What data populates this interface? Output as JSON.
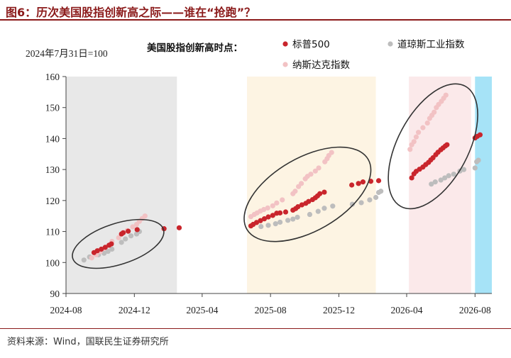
{
  "figure_title": "图6：历次美国股指创新高之际——谁在“抢跑”？",
  "source_note": "资料来源：Wind，国联民生证券研究所",
  "chart_data": {
    "type": "scatter",
    "title": "",
    "base_note": "2024年7月31日=100",
    "legend_title": "美国股指创新高时点：",
    "legend_position": "top-right",
    "xlabel": "",
    "ylabel": "",
    "ylim": [
      90,
      160
    ],
    "yticks": [
      90,
      100,
      110,
      120,
      130,
      140,
      150,
      160
    ],
    "xlim": [
      "2024-08-01",
      "2026-08-31"
    ],
    "xticks": [
      "2024-08",
      "2024-12",
      "2025-04",
      "2025-08",
      "2025-12",
      "2026-04",
      "2026-08"
    ],
    "grid": false,
    "colors": {
      "sp500": "#c9252c",
      "nasdaq": "#f2c2c4",
      "dow": "#bdbdbd",
      "period_gray": "#e8e8e8",
      "period_cream": "#fdf4e3",
      "period_pink": "#fbe9ea",
      "period_blue": "#a6e3f7",
      "ellipse": "#333333"
    },
    "highlight_periods": [
      {
        "start": "2024-08-01",
        "end": "2025-02-15",
        "color": "gray"
      },
      {
        "start": "2025-06-20",
        "end": "2026-02-05",
        "color": "cream"
      },
      {
        "start": "2026-04-05",
        "end": "2026-07-25",
        "color": "pink"
      },
      {
        "start": "2026-08-01",
        "end": "2026-08-31",
        "color": "blue"
      }
    ],
    "series": [
      {
        "name": "标普500",
        "color_key": "sp500",
        "points": [
          [
            "2024-09-20",
            103.2
          ],
          [
            "2024-09-26",
            103.8
          ],
          [
            "2024-10-03",
            104.3
          ],
          [
            "2024-10-10",
            104.9
          ],
          [
            "2024-10-17",
            105.6
          ],
          [
            "2024-10-21",
            106.0
          ],
          [
            "2024-11-08",
            109.2
          ],
          [
            "2024-11-11",
            109.6
          ],
          [
            "2024-11-20",
            110.1
          ],
          [
            "2024-12-06",
            110.6
          ],
          [
            "2025-01-23",
            110.9
          ],
          [
            "2025-02-19",
            111.2
          ],
          [
            "2025-06-27",
            111.8
          ],
          [
            "2025-07-01",
            112.3
          ],
          [
            "2025-07-07",
            112.9
          ],
          [
            "2025-07-14",
            113.5
          ],
          [
            "2025-07-21",
            114.1
          ],
          [
            "2025-07-28",
            114.7
          ],
          [
            "2025-08-05",
            115.2
          ],
          [
            "2025-08-12",
            115.9
          ],
          [
            "2025-08-18",
            116.0
          ],
          [
            "2025-08-28",
            116.3
          ],
          [
            "2025-09-10",
            116.9
          ],
          [
            "2025-09-15",
            117.4
          ],
          [
            "2025-09-19",
            118.0
          ],
          [
            "2025-09-26",
            118.6
          ],
          [
            "2025-10-03",
            119.1
          ],
          [
            "2025-10-08",
            119.7
          ],
          [
            "2025-10-15",
            120.3
          ],
          [
            "2025-10-20",
            120.9
          ],
          [
            "2025-10-24",
            121.5
          ],
          [
            "2025-10-28",
            122.2
          ],
          [
            "2025-11-05",
            122.7
          ],
          [
            "2025-12-24",
            125.0
          ],
          [
            "2026-01-05",
            125.5
          ],
          [
            "2026-01-13",
            126.0
          ],
          [
            "2026-01-27",
            126.2
          ],
          [
            "2026-02-10",
            126.4
          ],
          [
            "2026-04-10",
            127.3
          ],
          [
            "2026-04-14",
            128.6
          ],
          [
            "2026-04-18",
            129.4
          ],
          [
            "2026-04-24",
            130.1
          ],
          [
            "2026-04-30",
            130.8
          ],
          [
            "2026-05-05",
            131.6
          ],
          [
            "2026-05-10",
            132.3
          ],
          [
            "2026-05-14",
            133.1
          ],
          [
            "2026-05-18",
            133.8
          ],
          [
            "2026-05-23",
            134.8
          ],
          [
            "2026-05-27",
            135.6
          ],
          [
            "2026-06-01",
            136.4
          ],
          [
            "2026-06-05",
            137.0
          ],
          [
            "2026-06-09",
            137.6
          ],
          [
            "2026-06-12",
            138.0
          ],
          [
            "2026-08-01",
            140.2
          ],
          [
            "2026-08-05",
            140.7
          ],
          [
            "2026-08-10",
            141.2
          ]
        ]
      },
      {
        "name": "纳斯达克指数",
        "color_key": "nasdaq",
        "points": [
          [
            "2024-09-16",
            101.5
          ],
          [
            "2024-09-24",
            102.5
          ],
          [
            "2024-10-01",
            103.5
          ],
          [
            "2024-10-08",
            104.5
          ],
          [
            "2024-10-16",
            105.5
          ],
          [
            "2024-10-22",
            106.8
          ],
          [
            "2024-11-03",
            108.0
          ],
          [
            "2024-11-10",
            109.5
          ],
          [
            "2024-11-18",
            110.3
          ],
          [
            "2024-11-28",
            111.5
          ],
          [
            "2024-12-05",
            112.3
          ],
          [
            "2024-12-10",
            113.3
          ],
          [
            "2024-12-15",
            114.2
          ],
          [
            "2024-12-20",
            115.0
          ],
          [
            "2025-06-27",
            114.8
          ],
          [
            "2025-07-03",
            115.5
          ],
          [
            "2025-07-08",
            116.0
          ],
          [
            "2025-07-14",
            116.6
          ],
          [
            "2025-07-20",
            117.1
          ],
          [
            "2025-07-27",
            117.6
          ],
          [
            "2025-08-05",
            118.3
          ],
          [
            "2025-08-12",
            119.2
          ],
          [
            "2025-08-22",
            120.2
          ],
          [
            "2025-09-10",
            122.2
          ],
          [
            "2025-09-14",
            123.0
          ],
          [
            "2025-09-20",
            124.5
          ],
          [
            "2025-09-25",
            125.5
          ],
          [
            "2025-10-02",
            127.0
          ],
          [
            "2025-10-06",
            127.8
          ],
          [
            "2025-10-12",
            128.5
          ],
          [
            "2025-10-20",
            129.5
          ],
          [
            "2025-10-26",
            130.5
          ],
          [
            "2025-11-06",
            132.5
          ],
          [
            "2025-11-10",
            133.5
          ],
          [
            "2025-11-13",
            134.5
          ],
          [
            "2025-11-18",
            135.5
          ],
          [
            "2026-04-07",
            136.5
          ],
          [
            "2026-04-10",
            138.0
          ],
          [
            "2026-04-14",
            139.0
          ],
          [
            "2026-04-18",
            140.5
          ],
          [
            "2026-04-22",
            142.0
          ],
          [
            "2026-04-30",
            143.5
          ],
          [
            "2026-05-08",
            145.0
          ],
          [
            "2026-05-12",
            146.5
          ],
          [
            "2026-05-16",
            147.5
          ],
          [
            "2026-05-20",
            148.5
          ],
          [
            "2026-05-24",
            150.0
          ],
          [
            "2026-05-28",
            151.0
          ],
          [
            "2026-06-02",
            152.0
          ],
          [
            "2026-06-06",
            153.0
          ],
          [
            "2026-06-10",
            154.0
          ]
        ]
      },
      {
        "name": "道琼斯工业指数",
        "color_key": "dow",
        "points": [
          [
            "2024-09-02",
            100.8
          ],
          [
            "2024-09-12",
            101.8
          ],
          [
            "2024-09-28",
            102.5
          ],
          [
            "2024-10-08",
            103.0
          ],
          [
            "2024-10-15",
            103.6
          ],
          [
            "2024-10-22",
            104.3
          ],
          [
            "2024-11-08",
            106.5
          ],
          [
            "2024-11-15",
            107.6
          ],
          [
            "2024-11-25",
            108.6
          ],
          [
            "2024-12-05",
            109.2
          ],
          [
            "2024-12-10",
            110.0
          ],
          [
            "2025-07-15",
            111.6
          ],
          [
            "2025-07-28",
            112.0
          ],
          [
            "2025-08-10",
            112.5
          ],
          [
            "2025-08-18",
            113.0
          ],
          [
            "2025-09-01",
            113.6
          ],
          [
            "2025-09-10",
            114.0
          ],
          [
            "2025-09-18",
            114.6
          ],
          [
            "2025-10-10",
            115.5
          ],
          [
            "2025-10-25",
            116.5
          ],
          [
            "2025-11-05",
            117.5
          ],
          [
            "2025-11-20",
            118.2
          ],
          [
            "2025-12-25",
            118.8
          ],
          [
            "2026-01-10",
            119.3
          ],
          [
            "2026-01-25",
            120.2
          ],
          [
            "2026-02-05",
            121.0
          ],
          [
            "2026-02-10",
            122.6
          ],
          [
            "2026-02-14",
            123.0
          ],
          [
            "2026-05-15",
            125.3
          ],
          [
            "2026-05-22",
            126.0
          ],
          [
            "2026-06-01",
            126.6
          ],
          [
            "2026-06-08",
            127.3
          ],
          [
            "2026-06-15",
            128.0
          ],
          [
            "2026-06-24",
            128.5
          ],
          [
            "2026-07-05",
            129.5
          ],
          [
            "2026-07-12",
            130.0
          ],
          [
            "2026-08-01",
            130.5
          ],
          [
            "2026-08-04",
            132.5
          ],
          [
            "2026-08-07",
            133.0
          ]
        ]
      }
    ],
    "ellipses": [
      {
        "center": [
          "2024-11-02",
          106.0
        ],
        "rx_days": 85,
        "ry_value": 6.6,
        "angle": -18
      },
      {
        "center": [
          "2025-10-06",
          122.0
        ],
        "rx_days": 125,
        "ry_value": 11.8,
        "angle": -30
      },
      {
        "center": [
          "2026-05-18",
          137.5
        ],
        "rx_days": 63,
        "ry_value": 22.0,
        "angle": 28
      }
    ]
  }
}
